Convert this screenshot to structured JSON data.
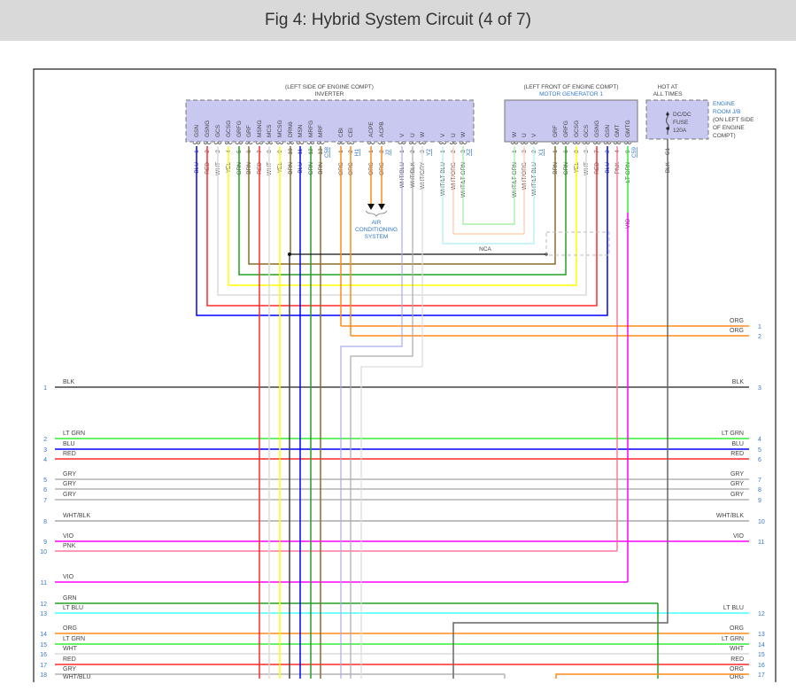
{
  "title": "Fig 4: Hybrid System Circuit (4 of 7)",
  "inverter": {
    "location": "(LEFT SIDE OF ENGINE COMPT)",
    "name": "INVERTER",
    "pins": [
      {
        "pin": "1",
        "signal": "GSN",
        "wire": "BLU"
      },
      {
        "pin": "2",
        "signal": "GSNG",
        "wire": "RED"
      },
      {
        "pin": "3",
        "signal": "GCS",
        "wire": "WHT"
      },
      {
        "pin": "4",
        "signal": "GCSG",
        "wire": "YEL"
      },
      {
        "pin": "5",
        "signal": "GRFG",
        "wire": "GRN"
      },
      {
        "pin": "6",
        "signal": "GRF",
        "wire": "BRN"
      },
      {
        "pin": "7",
        "signal": "MSNG",
        "wire": "RED"
      },
      {
        "pin": "8",
        "signal": "MCS",
        "wire": "WHT"
      },
      {
        "pin": "9",
        "signal": "MCSG",
        "wire": "YEL"
      },
      {
        "pin": "10",
        "signal": "DRN6",
        "wire": "BRN"
      },
      {
        "pin": "11",
        "signal": "MSN",
        "wire": "BLU"
      },
      {
        "pin": "12",
        "signal": "MRFG",
        "wire": "GRN"
      },
      {
        "pin": "13",
        "signal": "MRF",
        "wire": "BRN"
      },
      {
        "pin": "1",
        "signal": "CBI",
        "wire": "ORG"
      },
      {
        "pin": "2",
        "signal": "CEI",
        "wire": "ORG"
      },
      {
        "pin": "1",
        "signal": "ACPE",
        "wire": "ORG"
      },
      {
        "pin": "2",
        "signal": "ACPB",
        "wire": "ORG"
      },
      {
        "pin": "1",
        "signal": "V",
        "wire": "WHT/BLU"
      },
      {
        "pin": "2",
        "signal": "U",
        "wire": "WHT/BLK"
      },
      {
        "pin": "3",
        "signal": "W",
        "wire": "WHT/GRY"
      },
      {
        "pin": "1",
        "signal": "V",
        "wire": "WHT/LT BLU"
      },
      {
        "pin": "2",
        "signal": "U",
        "wire": "WHT/ORG"
      },
      {
        "pin": "3",
        "signal": "W",
        "wire": "WHT/LT GRN"
      }
    ],
    "connectors": [
      "C58",
      "H1",
      "J2",
      "Y2",
      "X2"
    ]
  },
  "motor_generator": {
    "location": "(LEFT FRONT OF ENGINE COMPT)",
    "name": "MOTOR GENERATOR 1",
    "pins": [
      {
        "pin": "1",
        "signal": "W",
        "wire": "WHT/LT GRN"
      },
      {
        "pin": "3",
        "signal": "U",
        "wire": "WHT/ORG"
      },
      {
        "pin": "2",
        "signal": "V",
        "wire": "WHT/LT BLU"
      },
      {
        "pin": "1",
        "signal": "GRF",
        "wire": "BRN"
      },
      {
        "pin": "6",
        "signal": "GRFG",
        "wire": "GRN"
      },
      {
        "pin": "8",
        "signal": "GCSG",
        "wire": "YEL"
      },
      {
        "pin": "3",
        "signal": "GCS",
        "wire": "WHT"
      },
      {
        "pin": "7",
        "signal": "GSNG",
        "wire": "RED"
      },
      {
        "pin": "2",
        "signal": "GSN",
        "wire": "BLU"
      },
      {
        "pin": "4",
        "signal": "GMT",
        "wire": "PNK"
      },
      {
        "pin": "9",
        "signal": "GMTG",
        "wire": "LT GRN"
      }
    ],
    "connectors": [
      "X1",
      "C59"
    ],
    "vio_label": "VIO"
  },
  "fuse": {
    "hot_label": [
      "HOT AT",
      "ALL TIMES"
    ],
    "lines": [
      "DC/DC",
      "FUSE",
      "120A"
    ],
    "box_label": [
      "ENGINE",
      "ROOM J/B",
      "(ON LEFT SIDE",
      "OF ENGINE",
      "COMPT)"
    ],
    "pin": "C1",
    "wire": "BLK"
  },
  "ac_system": [
    "AIR",
    "CONDITIONING",
    "SYSTEM"
  ],
  "nca_label": "NCA",
  "rows": [
    {
      "left_pin": "",
      "left_label": "",
      "right_label": "ORG",
      "right_pin": "1",
      "color": "ORG"
    },
    {
      "left_pin": "",
      "left_label": "",
      "right_label": "ORG",
      "right_pin": "2",
      "color": "ORG"
    },
    {
      "left_pin": "1",
      "left_label": "BLK",
      "right_label": "BLK",
      "right_pin": "3",
      "color": "BLK"
    },
    {
      "left_pin": "2",
      "left_label": "LT GRN",
      "right_label": "LT GRN",
      "right_pin": "4",
      "color": "LT GRN"
    },
    {
      "left_pin": "3",
      "left_label": "BLU",
      "right_label": "BLU",
      "right_pin": "5",
      "color": "BLU"
    },
    {
      "left_pin": "4",
      "left_label": "RED",
      "right_label": "RED",
      "right_pin": "6",
      "color": "RED"
    },
    {
      "left_pin": "5",
      "left_label": "GRY",
      "right_label": "GRY",
      "right_pin": "7",
      "color": "GRY"
    },
    {
      "left_pin": "6",
      "left_label": "GRY",
      "right_label": "GRY",
      "right_pin": "8",
      "color": "GRY"
    },
    {
      "left_pin": "7",
      "left_label": "GRY",
      "right_label": "GRY",
      "right_pin": "9",
      "color": "GRY"
    },
    {
      "left_pin": "8",
      "left_label": "WHT/BLK",
      "right_label": "WHT/BLK",
      "right_pin": "10",
      "color": "WHT/BLK"
    },
    {
      "left_pin": "9",
      "left_label": "VIO",
      "right_label": "VIO",
      "right_pin": "11",
      "color": "VIO"
    },
    {
      "left_pin": "10",
      "left_label": "PNK",
      "right_label": "",
      "right_pin": "",
      "color": "PNK"
    },
    {
      "left_pin": "11",
      "left_label": "VIO",
      "right_label": "",
      "right_pin": "",
      "color": "VIO"
    },
    {
      "left_pin": "12",
      "left_label": "GRN",
      "right_label": "",
      "right_pin": "",
      "color": "GRN"
    },
    {
      "left_pin": "13",
      "left_label": "LT BLU",
      "right_label": "LT BLU",
      "right_pin": "12",
      "color": "LT BLU"
    },
    {
      "left_pin": "14",
      "left_label": "ORG",
      "right_label": "ORG",
      "right_pin": "13",
      "color": "ORG"
    },
    {
      "left_pin": "15",
      "left_label": "LT GRN",
      "right_label": "LT GRN",
      "right_pin": "14",
      "color": "LT GRN"
    },
    {
      "left_pin": "16",
      "left_label": "WHT",
      "right_label": "WHT",
      "right_pin": "15",
      "color": "WHT"
    },
    {
      "left_pin": "17",
      "left_label": "RED",
      "right_label": "RED",
      "right_pin": "16",
      "color": "RED"
    },
    {
      "left_pin": "18",
      "left_label": "GRY",
      "right_label": "ORG",
      "right_pin": "17",
      "color": "GRY"
    },
    {
      "left_pin": "",
      "left_label": "WHT/BLU",
      "right_label": "ORG",
      "right_pin": "",
      "color": "WHT/BLU"
    }
  ],
  "wire_colors": {
    "BLU": "#0000ff",
    "RED": "#ff2a2a",
    "WHT": "#dcdcdc",
    "YEL": "#ffff00",
    "GRN": "#22a022",
    "BRN": "#8b6d2b",
    "ORG": "#ff8a1a",
    "LT GRN": "#33ee33",
    "LT BLU": "#44ffff",
    "PNK": "#ff7a9a",
    "VIO": "#ff00ff",
    "BLK": "#444444",
    "GRY": "#b4b4b4",
    "WHT/BLU": "#aaaaf0",
    "WHT/BLK": "#aaaaaa",
    "WHT/GRY": "#dddddd",
    "WHT/LT BLU": "#aaeef0",
    "WHT/ORG": "#ffcca8",
    "WHT/LT GRN": "#99ee99"
  },
  "colors": {
    "header_bg": "#d9d9d9",
    "connector_fill": "#c8c8f0",
    "label_blue": "#3377cc"
  }
}
